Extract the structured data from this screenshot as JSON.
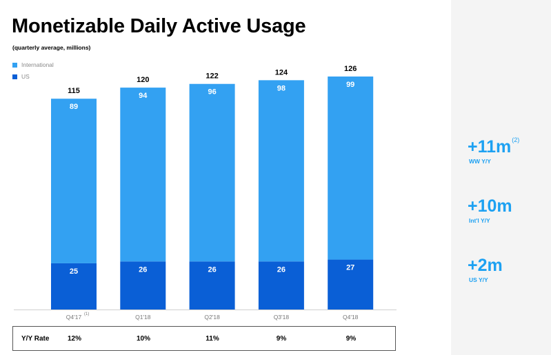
{
  "title": "Monetizable Daily Active Usage",
  "subtitle": "(quarterly average, millions)",
  "colors": {
    "international": "#33a1f2",
    "us": "#0a5fd6",
    "accent": "#1da1f2"
  },
  "legend": [
    {
      "name": "International",
      "color": "#33a1f2"
    },
    {
      "name": "US",
      "color": "#0a5fd6"
    }
  ],
  "chart_data": {
    "type": "bar",
    "stacked": true,
    "title": "Monetizable Daily Active Usage",
    "subtitle": "(quarterly average, millions)",
    "categories": [
      "Q4'17",
      "Q1'18",
      "Q2'18",
      "Q3'18",
      "Q4'18"
    ],
    "category_footnotes": [
      "(1)",
      "",
      "",
      "",
      ""
    ],
    "series": [
      {
        "name": "US",
        "values": [
          25,
          26,
          26,
          26,
          27
        ],
        "color": "#0a5fd6"
      },
      {
        "name": "International",
        "values": [
          89,
          94,
          96,
          98,
          99
        ],
        "color": "#33a1f2"
      }
    ],
    "totals": [
      115,
      120,
      122,
      124,
      126
    ],
    "ylim": [
      0,
      126
    ],
    "legend_position": "top-left",
    "grid": false
  },
  "rate_row": {
    "label": "Y/Y Rate",
    "values": [
      "12%",
      "10%",
      "11%",
      "9%",
      "9%"
    ]
  },
  "stats": [
    {
      "value": "+11m",
      "footnote": "(2)",
      "label": "WW Y/Y"
    },
    {
      "value": "+10m",
      "footnote": "",
      "label": "Int'l Y/Y"
    },
    {
      "value": "+2m",
      "footnote": "",
      "label": "US Y/Y"
    }
  ]
}
